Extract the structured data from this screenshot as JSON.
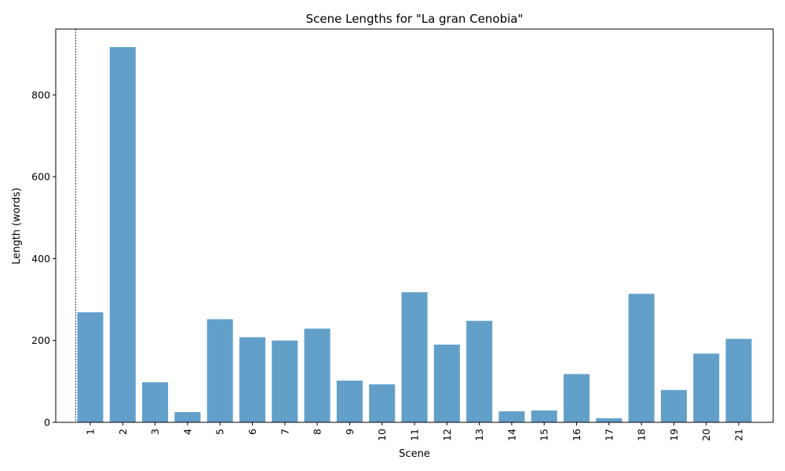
{
  "chart_data": {
    "type": "bar",
    "title": "Scene Lengths for \"La gran Cenobia\"",
    "xlabel": "Scene",
    "ylabel": "Length (words)",
    "categories": [
      "1",
      "2",
      "3",
      "4",
      "5",
      "6",
      "7",
      "8",
      "9",
      "10",
      "11",
      "12",
      "13",
      "14",
      "15",
      "16",
      "17",
      "18",
      "19",
      "20",
      "21"
    ],
    "values": [
      269,
      917,
      98,
      25,
      252,
      208,
      200,
      229,
      102,
      93,
      318,
      190,
      248,
      27,
      29,
      118,
      10,
      314,
      79,
      168,
      204
    ],
    "ylim": [
      0,
      961
    ],
    "yticks": [
      0,
      200,
      400,
      600,
      800
    ],
    "color": "#1f77b4",
    "grid": false,
    "reference_line_x": 0.55
  }
}
